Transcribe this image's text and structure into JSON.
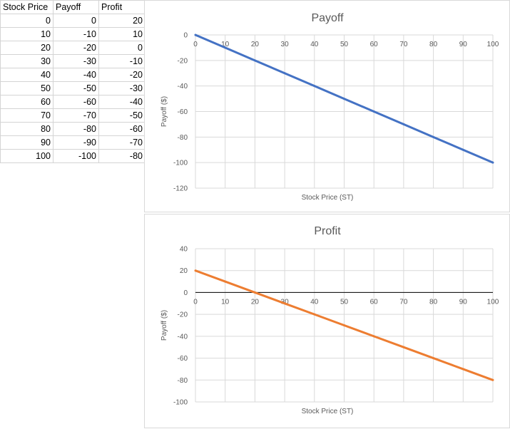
{
  "table": {
    "headers": [
      "Stock Price",
      "Payoff",
      "Profit"
    ],
    "rows": [
      [
        "0",
        "0",
        "20"
      ],
      [
        "10",
        "-10",
        "10"
      ],
      [
        "20",
        "-20",
        "0"
      ],
      [
        "30",
        "-30",
        "-10"
      ],
      [
        "40",
        "-40",
        "-20"
      ],
      [
        "50",
        "-50",
        "-30"
      ],
      [
        "60",
        "-60",
        "-40"
      ],
      [
        "70",
        "-70",
        "-50"
      ],
      [
        "80",
        "-80",
        "-60"
      ],
      [
        "90",
        "-90",
        "-70"
      ],
      [
        "100",
        "-100",
        "-80"
      ]
    ]
  },
  "chart_data": [
    {
      "type": "line",
      "title": "Payoff",
      "xlabel": "Stock Price (ST)",
      "ylabel": "Payoff ($)",
      "x": [
        0,
        10,
        20,
        30,
        40,
        50,
        60,
        70,
        80,
        90,
        100
      ],
      "series": [
        {
          "values": [
            0,
            -10,
            -20,
            -30,
            -40,
            -50,
            -60,
            -70,
            -80,
            -90,
            -100
          ],
          "color": "#4472c4"
        }
      ],
      "xlim": [
        0,
        100
      ],
      "ylim": [
        -120,
        0
      ],
      "xticks": [
        0,
        10,
        20,
        30,
        40,
        50,
        60,
        70,
        80,
        90,
        100
      ],
      "yticks": [
        0,
        -20,
        -40,
        -60,
        -80,
        -100,
        -120
      ],
      "grid": true
    },
    {
      "type": "line",
      "title": "Profit",
      "xlabel": "Stock Price (ST)",
      "ylabel": "Payoff ($)",
      "x": [
        0,
        10,
        20,
        30,
        40,
        50,
        60,
        70,
        80,
        90,
        100
      ],
      "series": [
        {
          "values": [
            20,
            10,
            0,
            -10,
            -20,
            -30,
            -40,
            -50,
            -60,
            -70,
            -80
          ],
          "color": "#ed7d31"
        }
      ],
      "xlim": [
        0,
        100
      ],
      "ylim": [
        -100,
        40
      ],
      "xticks": [
        0,
        10,
        20,
        30,
        40,
        50,
        60,
        70,
        80,
        90,
        100
      ],
      "yticks": [
        40,
        20,
        0,
        -20,
        -40,
        -60,
        -80,
        -100
      ],
      "grid": true
    }
  ]
}
